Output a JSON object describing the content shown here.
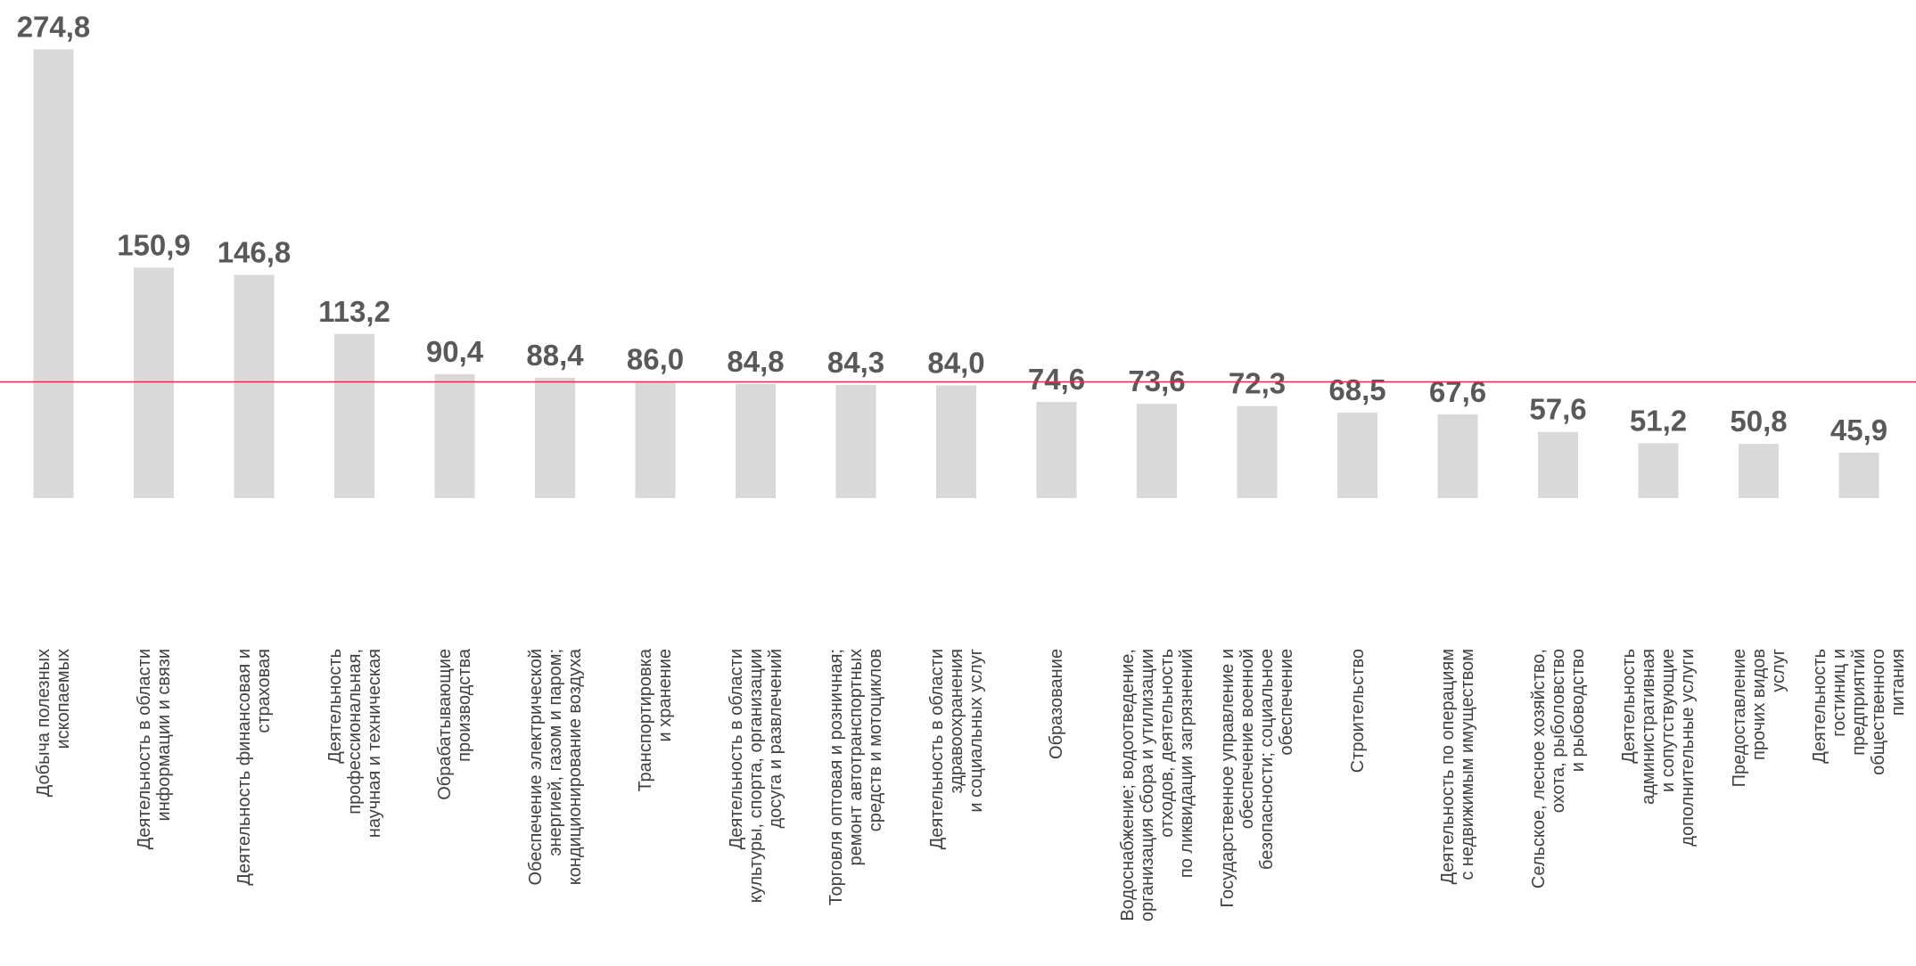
{
  "chart_data": {
    "type": "bar",
    "categories": [
      "Добыча полезных\nископаемых",
      "Деятельность в области\nинформации и связи",
      "Деятельность финансовая и\nстраховая",
      "Деятельность\nпрофессиональная,\nнаучная и техническая",
      "Обрабатывающие\nпроизводства",
      "Обеспечение электрической\nэнергией, газом и паром;\nкондиционирование воздуха",
      "Транспортировка\nи хранение",
      "Деятельность в области\nкультуры, спорта, организации\nдосуга и развлечений",
      "Торговля оптовая и розничная;\nремонт автотранспортных\nсредств и мотоциклов",
      "Деятельность в области\nздравоохранения\nи социальных услуг",
      "Образование",
      "Водоснабжение; водоотведение,\nорганизация сбора и утилизации\nотходов, деятельность\nпо ликвидации загрязнений",
      "Государственное управление и\nобеспечение военной\nбезопасности; социальное\nобеспечение",
      "Строительство",
      "Деятельность по операциям\nс недвижимым имуществом",
      "Сельское, лесное хозяйство,\nохота, рыболовство\nи рыбоводство",
      "Деятельность административная\nи сопутствующие\nдополнительные услуги",
      "Предоставление прочих видов\nуслуг",
      "Деятельность гостиниц и\nпредприятий общественного\nпитания"
    ],
    "values": [
      274.8,
      150.9,
      146.8,
      113.2,
      90.4,
      88.4,
      86.0,
      84.8,
      84.3,
      84.0,
      74.6,
      73.6,
      72.3,
      68.5,
      67.6,
      57.6,
      51.2,
      50.8,
      45.9
    ],
    "value_labels": [
      "274,8",
      "150,9",
      "146,8",
      "113,2",
      "90,4",
      "88,4",
      "86,0",
      "84,8",
      "84,3",
      "84,0",
      "74,6",
      "73,6",
      "72,3",
      "68,5",
      "67,6",
      "57,6",
      "51,2",
      "50,8",
      "45,9"
    ],
    "color": "#d9d9d9",
    "ylim": [
      20,
      275
    ],
    "reference_line": {
      "value": 86,
      "color": "#e0304a"
    }
  }
}
